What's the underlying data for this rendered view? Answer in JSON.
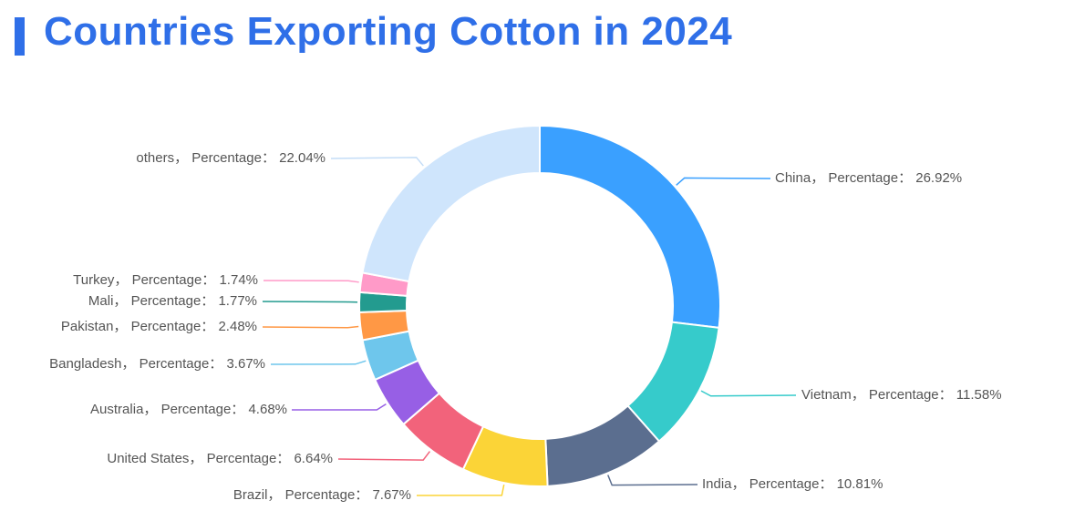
{
  "title": "Countries Exporting Cotton in 2024",
  "chart_data": {
    "type": "pie",
    "title": "Countries Exporting Cotton in 2024",
    "label_template": "{name}， Percentage： {value}%",
    "slices": [
      {
        "name": "China",
        "value": 26.92,
        "color": "#3aa0ff"
      },
      {
        "name": "Vietnam",
        "value": 11.58,
        "color": "#36cbcb"
      },
      {
        "name": "India",
        "value": 10.81,
        "color": "#5b6e8f"
      },
      {
        "name": "Brazil",
        "value": 7.67,
        "color": "#fbd437"
      },
      {
        "name": "United States",
        "value": 6.64,
        "color": "#f2637b"
      },
      {
        "name": "Australia",
        "value": 4.68,
        "color": "#975fe5"
      },
      {
        "name": "Bangladesh",
        "value": 3.67,
        "color": "#6ec6ec"
      },
      {
        "name": "Pakistan",
        "value": 2.48,
        "color": "#ff9845"
      },
      {
        "name": "Mali",
        "value": 1.77,
        "color": "#239b8f"
      },
      {
        "name": "Turkey",
        "value": 1.74,
        "color": "#ff9ac8"
      },
      {
        "name": "others",
        "value": 22.04,
        "color": "#cfe5fc"
      }
    ]
  }
}
